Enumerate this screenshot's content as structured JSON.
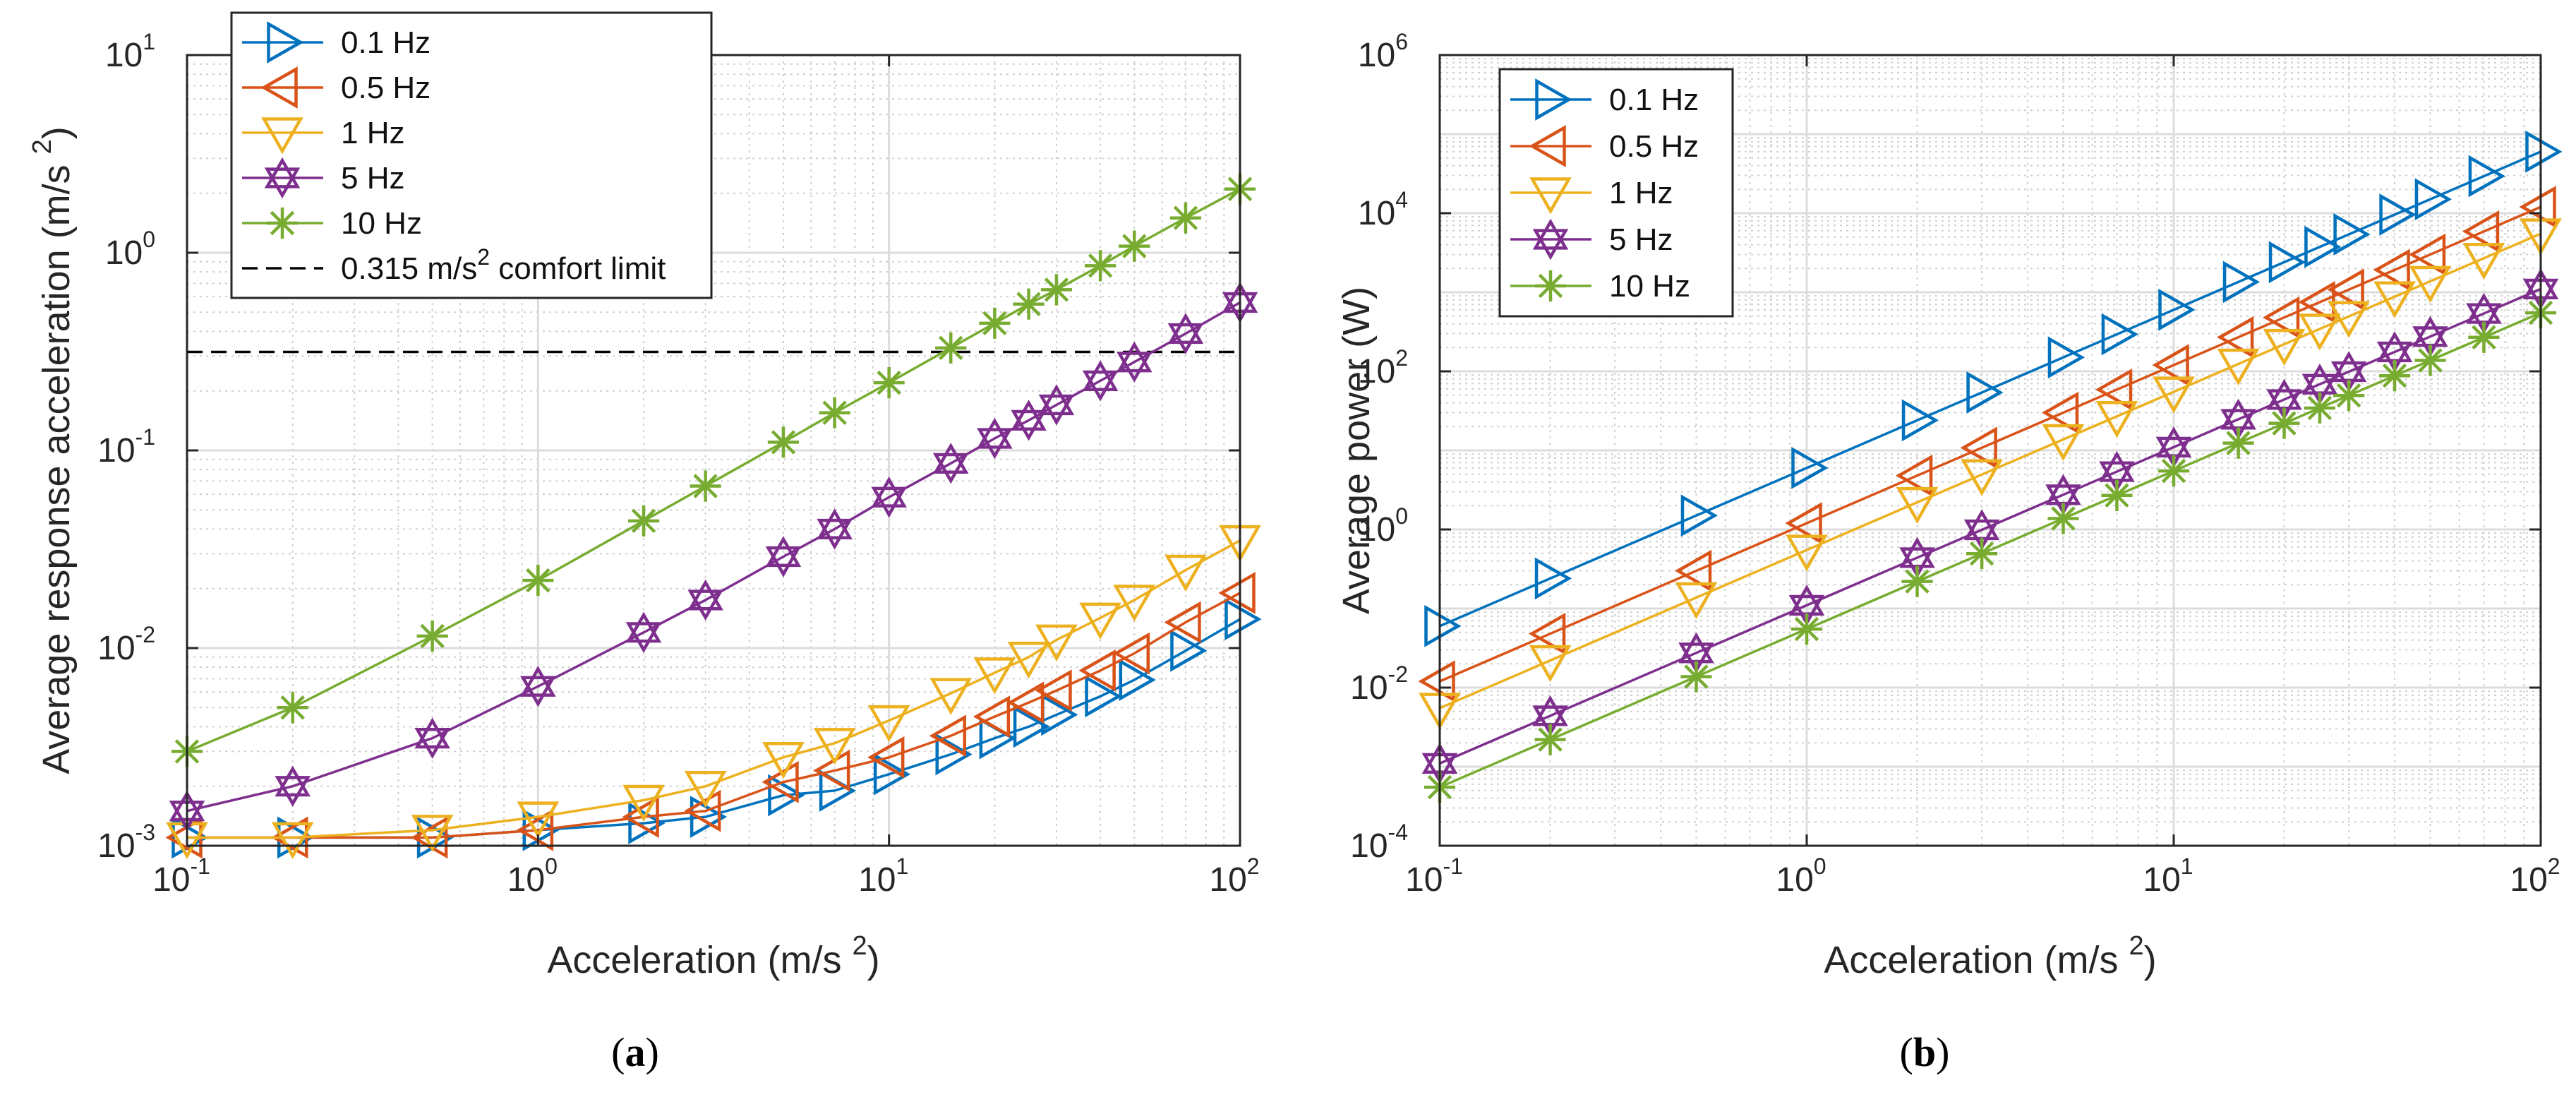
{
  "chart_data": [
    {
      "type": "line",
      "panel": "a",
      "caption": "a",
      "xscale": "log",
      "yscale": "log",
      "xlabel": "Acceleration (m/s 2)",
      "xlabel_main": "Acceleration (m/s",
      "xlabel_sup": "2",
      "ylabel": "Average response acceleration (m/s 2)",
      "ylabel_main": "Average response acceleration (m/s",
      "ylabel_sup": "2",
      "xlim": [
        0.1,
        100
      ],
      "ylim": [
        0.001,
        10
      ],
      "grid": true,
      "legend_position": "top-left",
      "x": [
        0.1,
        0.2,
        0.5,
        1,
        2,
        3,
        5,
        7,
        10,
        15,
        20,
        25,
        30,
        40,
        50,
        70,
        100
      ],
      "series": [
        {
          "name": "0.1 Hz",
          "color": "#0072BD",
          "marker": "triangle-right",
          "values": [
            0.0011,
            0.0011,
            0.0011,
            0.0012,
            0.0013,
            0.0014,
            0.0018,
            0.0019,
            0.0023,
            0.0029,
            0.0035,
            0.004,
            0.0046,
            0.0057,
            0.0069,
            0.0097,
            0.014
          ]
        },
        {
          "name": "0.5 Hz",
          "color": "#D95319",
          "marker": "triangle-left",
          "values": [
            0.0011,
            0.0011,
            0.0011,
            0.0012,
            0.0014,
            0.0015,
            0.0021,
            0.0024,
            0.0028,
            0.0036,
            0.0045,
            0.0053,
            0.0061,
            0.0077,
            0.0094,
            0.0135,
            0.019
          ]
        },
        {
          "name": "1 Hz",
          "color": "#EDB120",
          "marker": "triangle-down",
          "values": [
            0.0011,
            0.0011,
            0.0012,
            0.0014,
            0.0017,
            0.002,
            0.0028,
            0.0033,
            0.0043,
            0.0059,
            0.0075,
            0.009,
            0.011,
            0.0142,
            0.0175,
            0.0248,
            0.035
          ]
        },
        {
          "name": "5 Hz",
          "color": "#7E2F8E",
          "marker": "hexagram",
          "values": [
            0.0015,
            0.002,
            0.0035,
            0.0064,
            0.012,
            0.0175,
            0.029,
            0.04,
            0.058,
            0.086,
            0.115,
            0.142,
            0.17,
            0.225,
            0.28,
            0.39,
            0.56
          ]
        },
        {
          "name": "10 Hz",
          "color": "#77AC30",
          "marker": "asterisk",
          "values": [
            0.003,
            0.005,
            0.0115,
            0.022,
            0.044,
            0.066,
            0.11,
            0.155,
            0.22,
            0.33,
            0.44,
            0.55,
            0.65,
            0.86,
            1.08,
            1.5,
            2.1
          ]
        }
      ],
      "reference_line": {
        "value": 0.315,
        "label": "0.315 m/s2 comfort limit",
        "label_pre": "0.315 m/s",
        "label_sup": "2",
        "label_post": " comfort limit",
        "style": "dashed",
        "color": "#000000"
      },
      "yticks": [
        {
          "value": 10,
          "label": "10",
          "exponent": "1"
        },
        {
          "value": 1,
          "label": "10",
          "exponent": "0"
        },
        {
          "value": 0.1,
          "label": "10",
          "exponent": "-1"
        },
        {
          "value": 0.01,
          "label": "10",
          "exponent": "-2"
        },
        {
          "value": 0.001,
          "label": "10",
          "exponent": "-3"
        }
      ],
      "xticks": [
        {
          "value": 0.1,
          "label": "10",
          "exponent": "-1"
        },
        {
          "value": 1,
          "label": "10",
          "exponent": "0"
        },
        {
          "value": 10,
          "label": "10",
          "exponent": "1"
        },
        {
          "value": 100,
          "label": "10",
          "exponent": "2"
        }
      ]
    },
    {
      "type": "line",
      "panel": "b",
      "caption": "b",
      "xscale": "log",
      "yscale": "log",
      "xlabel": "Acceleration (m/s 2)",
      "xlabel_main": "Acceleration (m/s",
      "xlabel_sup": "2",
      "ylabel": "Average power (W)",
      "ylabel_main": "Average power (W)",
      "ylabel_sup": "",
      "xlim": [
        0.1,
        100
      ],
      "ylim": [
        0.0001,
        1000000
      ],
      "grid": true,
      "legend_position": "top-left",
      "x": [
        0.1,
        0.2,
        0.5,
        1,
        2,
        3,
        5,
        7,
        10,
        15,
        20,
        25,
        30,
        40,
        50,
        70,
        100
      ],
      "series": [
        {
          "name": "0.1 Hz",
          "color": "#0072BD",
          "marker": "triangle-right",
          "values": [
            0.06,
            0.24,
            1.5,
            6,
            24,
            54,
            150,
            294,
            600,
            1350,
            2400,
            3750,
            5400,
            9600,
            15000,
            29400,
            60000
          ]
        },
        {
          "name": "0.5 Hz",
          "color": "#D95319",
          "marker": "triangle-left",
          "values": [
            0.012,
            0.048,
            0.3,
            1.2,
            4.8,
            10.8,
            30,
            58.8,
            120,
            270,
            480,
            750,
            1080,
            1920,
            3000,
            5880,
            12000
          ]
        },
        {
          "name": "1 Hz",
          "color": "#EDB120",
          "marker": "triangle-down",
          "values": [
            0.0055,
            0.022,
            0.1375,
            0.55,
            2.2,
            4.95,
            13.75,
            26.95,
            55,
            123.75,
            220,
            343.75,
            495,
            880,
            1375,
            2695,
            5500
          ]
        },
        {
          "name": "5 Hz",
          "color": "#7E2F8E",
          "marker": "hexagram",
          "values": [
            0.0011,
            0.0044,
            0.0275,
            0.11,
            0.44,
            0.99,
            2.75,
            5.39,
            11,
            24.75,
            44,
            68.75,
            99,
            176,
            275,
            539,
            1100
          ]
        },
        {
          "name": "10 Hz",
          "color": "#77AC30",
          "marker": "asterisk",
          "values": [
            0.00055,
            0.0022,
            0.01375,
            0.055,
            0.22,
            0.495,
            1.375,
            2.695,
            5.5,
            12.375,
            22,
            34.375,
            49.5,
            88,
            137.5,
            269.5,
            550
          ]
        }
      ],
      "yticks": [
        {
          "value": 1000000,
          "label": "10",
          "exponent": "6"
        },
        {
          "value": 10000,
          "label": "10",
          "exponent": "4"
        },
        {
          "value": 100,
          "label": "10",
          "exponent": "2"
        },
        {
          "value": 1,
          "label": "10",
          "exponent": "0"
        },
        {
          "value": 0.01,
          "label": "10",
          "exponent": "-2"
        },
        {
          "value": 0.0001,
          "label": "10",
          "exponent": "-4"
        }
      ],
      "xticks": [
        {
          "value": 0.1,
          "label": "10",
          "exponent": "-1"
        },
        {
          "value": 1,
          "label": "10",
          "exponent": "0"
        },
        {
          "value": 10,
          "label": "10",
          "exponent": "1"
        },
        {
          "value": 100,
          "label": "10",
          "exponent": "2"
        }
      ]
    }
  ]
}
